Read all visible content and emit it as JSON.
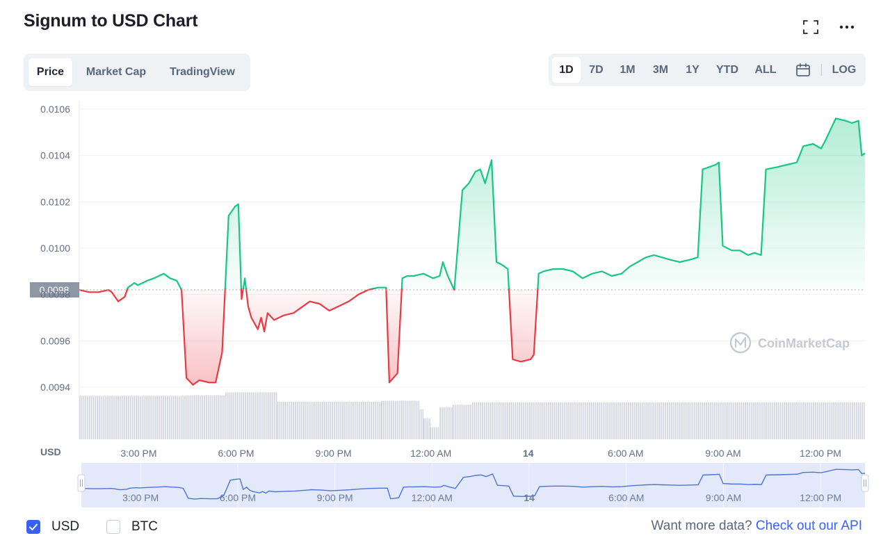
{
  "header": {
    "title": "Signum to USD Chart",
    "expand_icon": "fullscreen-icon",
    "more_icon": "more-horizontal-icon"
  },
  "tabs": [
    {
      "label": "Price",
      "active": true
    },
    {
      "label": "Market Cap",
      "active": false
    },
    {
      "label": "TradingView",
      "active": false
    }
  ],
  "ranges": [
    {
      "label": "1D",
      "active": true
    },
    {
      "label": "7D",
      "active": false
    },
    {
      "label": "1M",
      "active": false
    },
    {
      "label": "3M",
      "active": false
    },
    {
      "label": "1Y",
      "active": false
    },
    {
      "label": "YTD",
      "active": false
    },
    {
      "label": "ALL",
      "active": false
    }
  ],
  "calendar_icon": "calendar-icon",
  "log_label": "LOG",
  "colors": {
    "up": "#16c784",
    "down": "#ea3943",
    "accent": "#3861fb",
    "volume": "#cfd4dd",
    "navigator_line": "#4a74d8",
    "navigator_fill": "#e3e9fb"
  },
  "chart_data": {
    "type": "line",
    "title": "Signum to USD Chart",
    "ylabel": "USD",
    "ylim": [
      0.0094,
      0.0106
    ],
    "ytick_labels": [
      "0.0106",
      "0.0104",
      "0.0102",
      "0.0100",
      "0.0098",
      "0.0096",
      "0.0094"
    ],
    "xlim": [
      0,
      24.2
    ],
    "x_unit": "hours from 1:10 PM on the 13th",
    "xtick_labels": [
      {
        "x": 1.83,
        "label": "3:00 PM"
      },
      {
        "x": 4.83,
        "label": "6:00 PM"
      },
      {
        "x": 7.83,
        "label": "9:00 PM"
      },
      {
        "x": 10.83,
        "label": "12:00 AM"
      },
      {
        "x": 13.83,
        "label": "14",
        "bold": true
      },
      {
        "x": 16.83,
        "label": "6:00 AM"
      },
      {
        "x": 19.83,
        "label": "9:00 AM"
      },
      {
        "x": 22.83,
        "label": "12:00 PM"
      }
    ],
    "baseline": 0.00982,
    "current_price_label": "0.0098",
    "watermark": "CoinMarketCap",
    "grid": true,
    "series": [
      {
        "points": [
          [
            0.0,
            0.00982
          ],
          [
            0.3,
            0.00981
          ],
          [
            0.6,
            0.00981
          ],
          [
            0.9,
            0.00982
          ],
          [
            1.0,
            0.00981
          ],
          [
            1.2,
            0.00977
          ],
          [
            1.4,
            0.00979
          ],
          [
            1.5,
            0.00983
          ],
          [
            1.7,
            0.00985
          ],
          [
            1.8,
            0.00984
          ],
          [
            2.1,
            0.00986
          ],
          [
            2.3,
            0.00987
          ],
          [
            2.6,
            0.00989
          ],
          [
            2.8,
            0.00987
          ],
          [
            3.0,
            0.00986
          ],
          [
            3.15,
            0.00982
          ],
          [
            3.3,
            0.00944
          ],
          [
            3.5,
            0.00941
          ],
          [
            3.7,
            0.00943
          ],
          [
            4.0,
            0.00942
          ],
          [
            4.2,
            0.00942
          ],
          [
            4.4,
            0.00955
          ],
          [
            4.6,
            0.01014
          ],
          [
            4.8,
            0.01018
          ],
          [
            4.9,
            0.01019
          ],
          [
            5.0,
            0.00978
          ],
          [
            5.1,
            0.00987
          ],
          [
            5.2,
            0.00975
          ],
          [
            5.3,
            0.0097
          ],
          [
            5.5,
            0.00965
          ],
          [
            5.6,
            0.0097
          ],
          [
            5.7,
            0.00964
          ],
          [
            5.8,
            0.00972
          ],
          [
            6.0,
            0.00969
          ],
          [
            6.3,
            0.00971
          ],
          [
            6.6,
            0.00972
          ],
          [
            6.9,
            0.00975
          ],
          [
            7.1,
            0.00977
          ],
          [
            7.4,
            0.00976
          ],
          [
            7.7,
            0.00973
          ],
          [
            8.0,
            0.00975
          ],
          [
            8.3,
            0.00977
          ],
          [
            8.6,
            0.0098
          ],
          [
            8.9,
            0.00982
          ],
          [
            9.2,
            0.00983
          ],
          [
            9.45,
            0.00983
          ],
          [
            9.55,
            0.00942
          ],
          [
            9.8,
            0.00946
          ],
          [
            9.95,
            0.00987
          ],
          [
            10.1,
            0.00988
          ],
          [
            10.3,
            0.00988
          ],
          [
            10.6,
            0.00989
          ],
          [
            10.9,
            0.00987
          ],
          [
            11.1,
            0.00988
          ],
          [
            11.2,
            0.00994
          ],
          [
            11.35,
            0.00988
          ],
          [
            11.55,
            0.00982
          ],
          [
            11.8,
            0.01025
          ],
          [
            12.0,
            0.01028
          ],
          [
            12.2,
            0.01033
          ],
          [
            12.35,
            0.01034
          ],
          [
            12.5,
            0.01028
          ],
          [
            12.7,
            0.01038
          ],
          [
            12.85,
            0.00994
          ],
          [
            13.0,
            0.00993
          ],
          [
            13.2,
            0.00991
          ],
          [
            13.35,
            0.00952
          ],
          [
            13.6,
            0.00951
          ],
          [
            13.9,
            0.00952
          ],
          [
            14.0,
            0.00954
          ],
          [
            14.15,
            0.00989
          ],
          [
            14.3,
            0.0099
          ],
          [
            14.6,
            0.00991
          ],
          [
            14.9,
            0.00991
          ],
          [
            15.2,
            0.0099
          ],
          [
            15.5,
            0.00987
          ],
          [
            15.8,
            0.00989
          ],
          [
            16.1,
            0.0099
          ],
          [
            16.4,
            0.00988
          ],
          [
            16.7,
            0.00989
          ],
          [
            16.95,
            0.00992
          ],
          [
            17.2,
            0.00994
          ],
          [
            17.45,
            0.00996
          ],
          [
            17.7,
            0.00997
          ],
          [
            17.95,
            0.00996
          ],
          [
            18.2,
            0.00995
          ],
          [
            18.5,
            0.00994
          ],
          [
            18.8,
            0.00995
          ],
          [
            19.05,
            0.00996
          ],
          [
            19.2,
            0.01034
          ],
          [
            19.4,
            0.01035
          ],
          [
            19.6,
            0.01036
          ],
          [
            19.7,
            0.01037
          ],
          [
            19.82,
            0.01001
          ],
          [
            20.1,
            0.00999
          ],
          [
            20.35,
            0.00999
          ],
          [
            20.6,
            0.00997
          ],
          [
            20.8,
            0.00998
          ],
          [
            21.0,
            0.00997
          ],
          [
            21.15,
            0.01034
          ],
          [
            21.5,
            0.01035
          ],
          [
            21.8,
            0.01036
          ],
          [
            22.1,
            0.01037
          ],
          [
            22.3,
            0.01044
          ],
          [
            22.6,
            0.01045
          ],
          [
            22.85,
            0.01043
          ],
          [
            23.0,
            0.01047
          ],
          [
            23.3,
            0.01056
          ],
          [
            23.6,
            0.01055
          ],
          [
            23.8,
            0.01054
          ],
          [
            24.0,
            0.01055
          ],
          [
            24.1,
            0.0104
          ],
          [
            24.2,
            0.01041
          ]
        ]
      }
    ],
    "volume_blocks": [
      {
        "x0": 0.0,
        "x1": 3.3,
        "level": 0.87
      },
      {
        "x0": 3.3,
        "x1": 4.5,
        "level": 0.88
      },
      {
        "x0": 4.5,
        "x1": 6.1,
        "level": 0.94
      },
      {
        "x0": 6.1,
        "x1": 9.3,
        "level": 0.75
      },
      {
        "x0": 9.3,
        "x1": 10.45,
        "level": 0.77
      },
      {
        "x0": 10.45,
        "x1": 10.6,
        "level": 0.6
      },
      {
        "x0": 10.6,
        "x1": 10.8,
        "level": 0.42
      },
      {
        "x0": 10.8,
        "x1": 11.1,
        "level": 0.24
      },
      {
        "x0": 11.1,
        "x1": 11.5,
        "level": 0.64
      },
      {
        "x0": 11.5,
        "x1": 12.1,
        "level": 0.69
      },
      {
        "x0": 12.1,
        "x1": 24.2,
        "level": 0.74
      }
    ],
    "navigator": {
      "xtick_labels": [
        "3:00 PM",
        "6:00 PM",
        "9:00 PM",
        "12:00 AM",
        "14",
        "6:00 AM",
        "9:00 AM",
        "12:00 PM"
      ]
    }
  },
  "legend": [
    {
      "label": "USD",
      "checked": true
    },
    {
      "label": "BTC",
      "checked": false
    }
  ],
  "footer": {
    "prefix": "Want more data? ",
    "link": "Check out our API"
  }
}
